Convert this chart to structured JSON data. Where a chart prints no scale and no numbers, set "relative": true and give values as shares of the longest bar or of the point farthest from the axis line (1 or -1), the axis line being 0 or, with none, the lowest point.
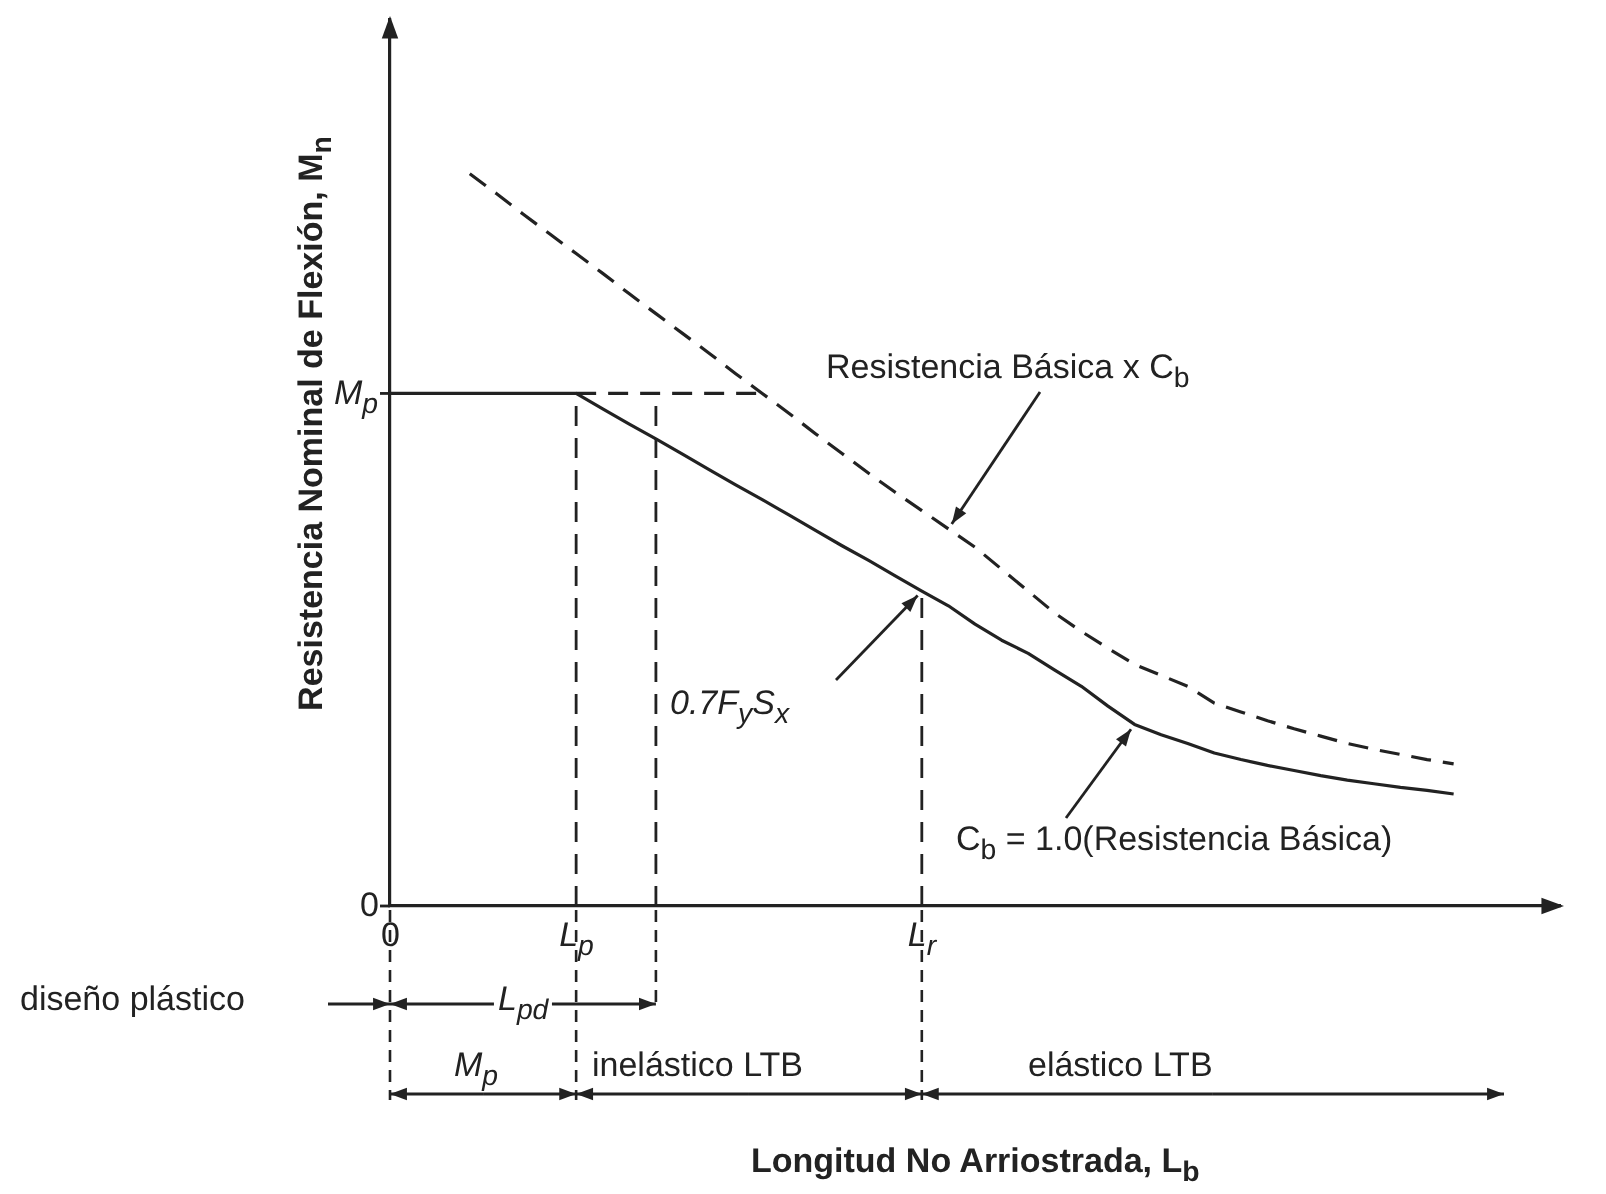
{
  "chart_data": {
    "type": "line",
    "ylabel": "Resistencia Nominal de Flexión, M$_{n}$",
    "relative": true,
    "categories": [
      "0",
      null,
      null,
      null,
      null,
      null,
      null,
      "L$_{p}$",
      null,
      null,
      null,
      null,
      null,
      null,
      null,
      null,
      null,
      null,
      null,
      null,
      "L$_{r}$",
      null,
      null,
      null,
      null,
      null,
      null,
      null,
      null,
      null,
      null,
      null,
      null,
      null,
      null,
      null,
      null,
      null,
      null,
      null,
      null,
      null,
      null,
      null,
      null
    ],
    "marker": "none",
    "legend": false,
    "grid": false,
    "series": [
      {
        "color": "#222222",
        "line_style": "solid",
        "values": [
          0.7,
          0.7,
          0.7,
          0.7,
          0.7,
          0.7,
          0.7,
          0.7,
          0.679,
          0.658,
          0.638,
          0.617,
          0.596,
          0.575,
          0.555,
          0.534,
          0.513,
          0.492,
          0.472,
          0.451,
          0.43,
          0.41,
          0.385,
          0.363,
          0.345,
          0.322,
          0.3,
          0.273,
          0.248,
          0.234,
          0.222,
          0.209,
          0.2,
          0.192,
          0.185,
          0.178,
          0.172,
          0.167,
          0.162,
          0.158,
          0.153,
          null,
          null,
          null,
          null
        ]
      },
      {
        "color": "#222222",
        "line_style": "dashed",
        "values": [
          null,
          null,
          null,
          1,
          0.973,
          0.945,
          0.918,
          0.891,
          0.864,
          0.836,
          0.809,
          0.782,
          0.755,
          0.727,
          0.7,
          0.673,
          0.645,
          0.618,
          0.591,
          0.565,
          0.54,
          0.515,
          0.49,
          0.46,
          0.43,
          0.4,
          0.375,
          0.352,
          0.33,
          0.315,
          0.3,
          0.277,
          0.265,
          0.253,
          0.242,
          0.232,
          0.222,
          0.214,
          0.207,
          0.2,
          0.194,
          null,
          null,
          null,
          null
        ]
      },
      {
        "color": "#222222",
        "line_style": "dashed",
        "values": [
          null,
          null,
          null,
          null,
          null,
          null,
          null,
          0.7,
          0.7,
          0.7,
          0.7,
          0.7,
          0.7,
          0.7,
          0.7,
          null,
          null,
          null,
          null,
          null,
          null,
          null,
          null,
          null,
          null,
          null,
          null,
          null,
          null,
          null,
          null,
          null,
          null,
          null,
          null,
          null,
          null,
          null,
          null,
          null,
          null,
          null,
          null,
          null,
          null
        ]
      }
    ],
    "ref_lines": [
      {
        "axis": "x",
        "value": "L$_{p}$",
        "line_style": "dashed"
      },
      {
        "axis": "x",
        "value": "L$_{r}$",
        "line_style": "dashed"
      }
    ],
    "annotations": [
      "M$_{p}$",
      "0",
      "Resistencia Básica x C$_{b}$",
      "0.7F$_{y}$S$_{x}$",
      "C$_{b}$ = 1.0(Resistencia Básica)",
      "diseño plástico",
      "M$_{p}$",
      "inelástico LTB",
      "elástico LTB",
      "L$_{pd}$",
      "Longitud No Arriostrada, L$_{b}$"
    ]
  }
}
